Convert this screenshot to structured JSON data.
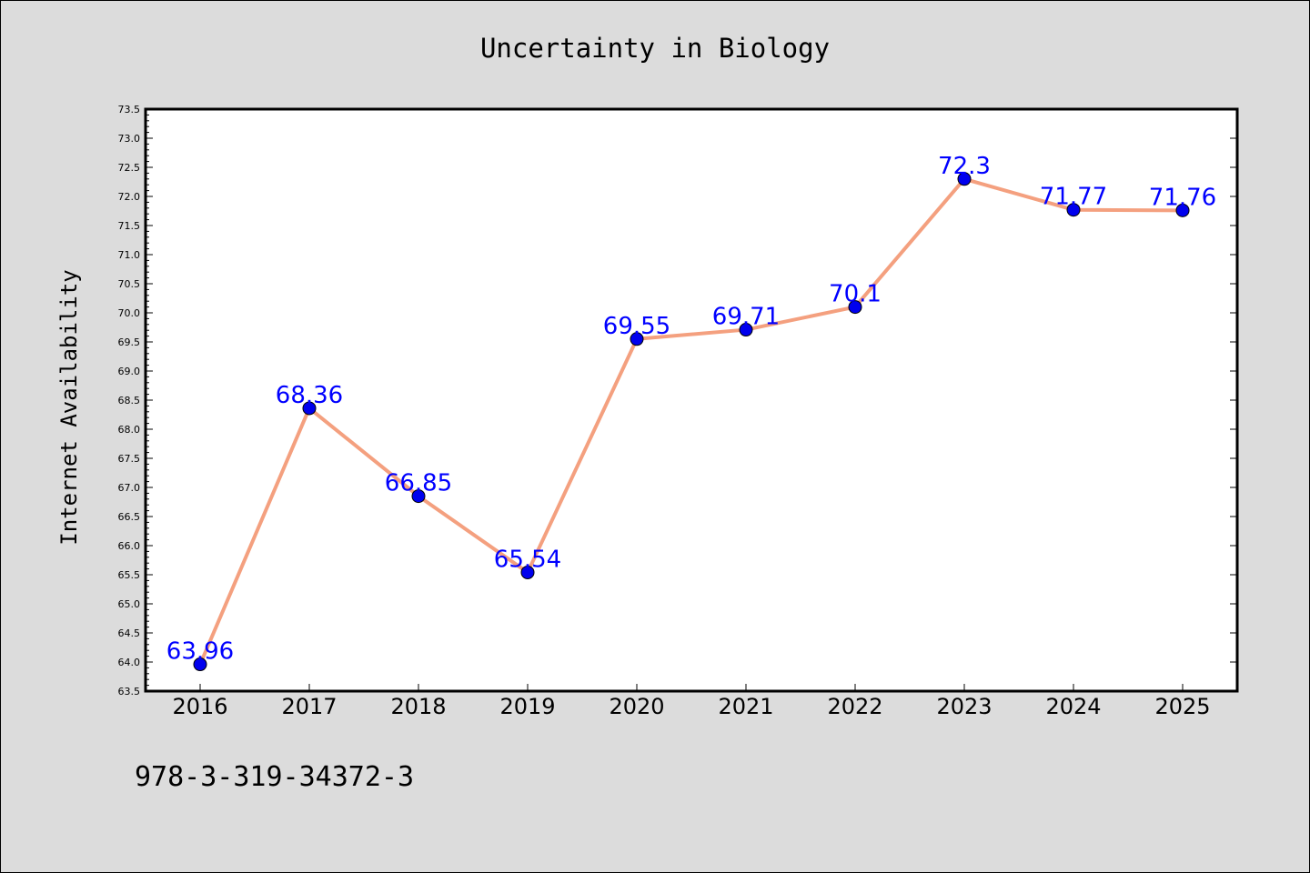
{
  "chart_data": {
    "type": "line",
    "title": "Uncertainty in Biology",
    "xlabel": "",
    "ylabel": "Internet Availability",
    "categories": [
      "2016",
      "2017",
      "2018",
      "2019",
      "2020",
      "2021",
      "2022",
      "2023",
      "2024",
      "2025"
    ],
    "series": [
      {
        "values": [
          63.96,
          68.36,
          66.85,
          65.54,
          69.55,
          69.71,
          70.1,
          72.3,
          71.77,
          71.76
        ],
        "data_labels": [
          "63.96",
          "68.36",
          "66.85",
          "65.54",
          "69.55",
          "69.71",
          "70.1",
          "72.3",
          "71.77",
          "71.76"
        ]
      }
    ],
    "ylim": [
      63.5,
      73.5
    ],
    "ytick_step": 0.5,
    "grid": false,
    "legend": "none"
  },
  "footnote": "978-3-319-34372-3",
  "colors": {
    "background": "#dcdcdc",
    "plot_background": "#ffffff",
    "line": "#f4a07f",
    "marker": "#0000ee",
    "data_label": "#0000ff"
  }
}
